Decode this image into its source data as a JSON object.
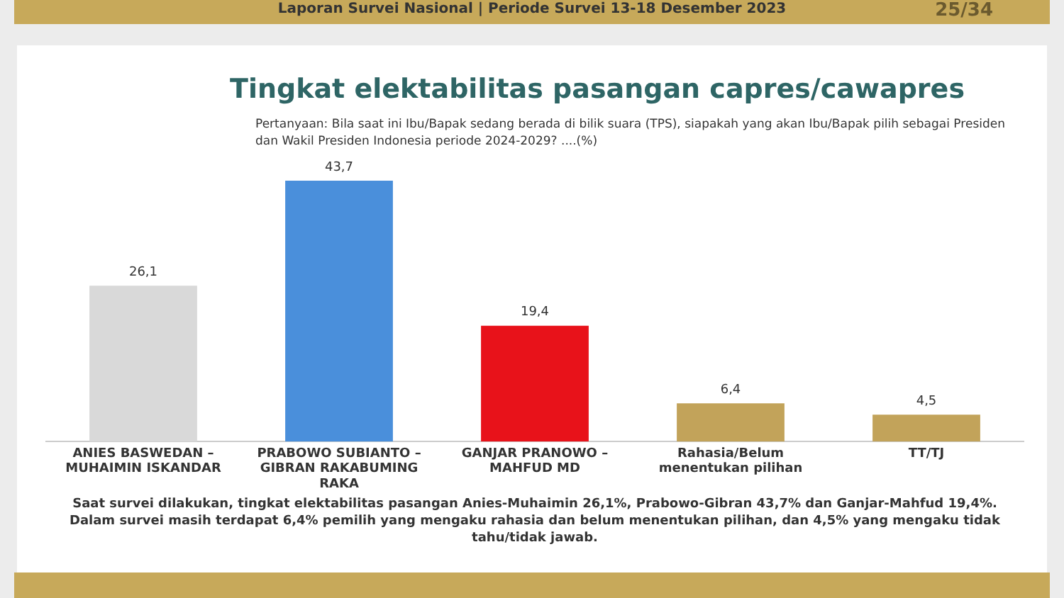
{
  "chart_data": {
    "type": "bar",
    "title": "Tingkat elektabilitas pasangan capres/cawapres",
    "subtitle": "Pertanyaan: Bila saat ini Ibu/Bapak sedang berada di bilik suara (TPS), siapakah yang akan Ibu/Bapak pilih sebagai Presiden dan Wakil Presiden Indonesia periode 2024-2029? ....(%)",
    "categories": [
      "ANIES BASWEDAN –\nMUHAIMIN ISKANDAR",
      "PRABOWO SUBIANTO –\nGIBRAN RAKABUMING\nRAKA",
      "GANJAR PRANOWO –\nMAHFUD MD",
      "Rahasia/Belum\nmenentukan pilihan",
      "TT/TJ"
    ],
    "values": [
      26.1,
      43.7,
      19.4,
      6.4,
      4.5
    ],
    "colors": [
      "#d9d9d9",
      "#4a8fdb",
      "#e8121a",
      "#c2a35a",
      "#c2a35a"
    ],
    "value_labels": [
      "26,1",
      "43,7",
      "19,4",
      "6,4",
      "4,5"
    ],
    "annotations": [
      "Laporan Survei Nasional | Periode Survei 13-18 Desember 2023",
      "25/34",
      "Saat survei dilakukan, tingkat elektabilitas pasangan Anies-Muhaimin 26,1%, Prabowo-Gibran 43,7% dan Ganjar-Mahfud 19,4%. Dalam survei masih terdapat 6,4% pemilih yang mengaku rahasia dan belum menentukan pilihan, dan 4,5% yang mengaku tidak tahu/tidak jawab."
    ],
    "grid": false,
    "legend": false
  }
}
